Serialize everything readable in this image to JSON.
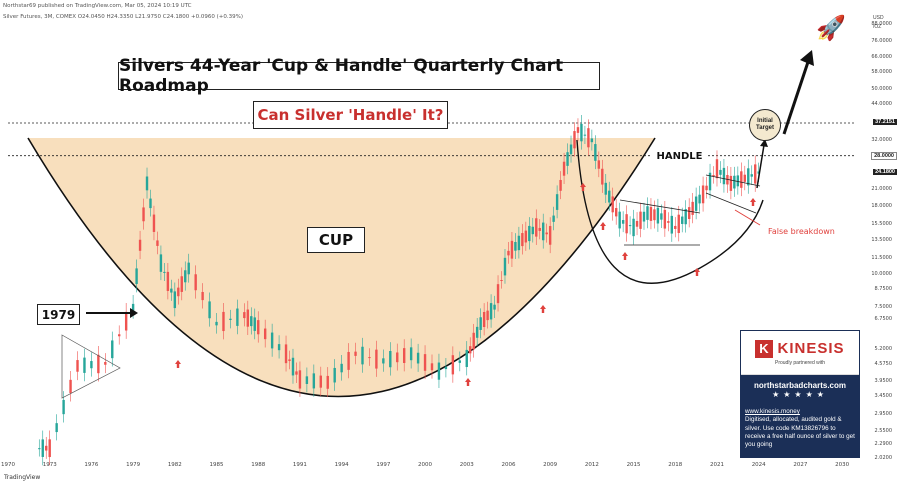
{
  "header": {
    "line1": "Northstar69 published on TradingView.com, Mar 05, 2024 10:19 UTC",
    "line2": "Silver Futures, 3M, COMEX  O24.0450  H24.3350  L21.9750  C24.1800  +0.0960 (+0.39%)"
  },
  "footer": {
    "brand": "TradingView"
  },
  "annotations": {
    "title": "Silvers 44-Year 'Cup & Handle' Quarterly Chart Roadmap",
    "subtitle": "Can Silver 'Handle' It?",
    "cup_label": "CUP",
    "handle_label": "HANDLE",
    "year_label": "1979",
    "false_breakdown": "False breakdown",
    "target_line1": "Initial",
    "target_line2": "Target"
  },
  "promo": {
    "brand": "KINESIS",
    "partner": "Proudly partnered with",
    "site": "northstarbadcharts.com",
    "stars": "★★★★★",
    "link": "www.kinesis.money",
    "text": "Digitised, allocated, audited gold & silver. Use code KM13826796 to receive a free half ounce of silver to get you going"
  },
  "axis": {
    "currency": "USD",
    "unit": "/OZ",
    "price_ticks": [
      "88.0000",
      "76.0000",
      "66.0000",
      "58.0000",
      "50.0000",
      "44.0000",
      "32.0000",
      "21.0000",
      "18.0000",
      "15.5000",
      "13.5000",
      "11.5000",
      "10.0000",
      "8.7500",
      "7.5000",
      "6.7500",
      "5.2000",
      "4.5750",
      "3.9500",
      "3.4500",
      "2.9500",
      "2.5500",
      "2.2900",
      "2.0200"
    ],
    "flags": {
      "resistance": "37.2151",
      "mid": "28.0000",
      "last": "24.1800"
    },
    "years": [
      "1970",
      "1973",
      "1976",
      "1979",
      "1982",
      "1985",
      "1988",
      "1991",
      "1994",
      "1997",
      "2000",
      "2003",
      "2006",
      "2009",
      "2012",
      "2015",
      "2018",
      "2021",
      "2024",
      "2027",
      "2030"
    ]
  },
  "colors": {
    "up": "#26a69a",
    "down": "#ef5350",
    "cup_fill": "#f8dfbd",
    "arrow_red": "#e0413d"
  },
  "chart_data": {
    "type": "candlestick",
    "title": "Silvers 44-Year 'Cup & Handle' Quarterly Chart Roadmap",
    "subtitle": "Can Silver 'Handle' It?",
    "series": [
      {
        "name": "Silver Futures",
        "x": [
          1973,
          1975,
          1977,
          1979,
          1980,
          1981,
          1982,
          1983,
          1985,
          1987,
          1988,
          1990,
          1991,
          1993,
          1995,
          1997,
          1999,
          2001,
          2003,
          2004,
          2005,
          2006,
          2007,
          2008,
          2009,
          2010,
          2011,
          2012,
          2013,
          2014,
          2015,
          2016,
          2017,
          2018,
          2019,
          2020,
          2021,
          2022,
          2023,
          2024
        ],
        "values": [
          2.2,
          4.5,
          4.6,
          7.5,
          22.0,
          11.0,
          8.0,
          10.5,
          6.5,
          7.0,
          6.3,
          5.0,
          4.0,
          3.9,
          5.0,
          4.7,
          5.0,
          4.3,
          4.8,
          6.5,
          7.5,
          12.0,
          13.5,
          15.0,
          14.0,
          25.0,
          35.0,
          32.0,
          21.0,
          16.0,
          15.0,
          17.0,
          16.5,
          15.0,
          17.0,
          20.0,
          25.0,
          22.0,
          23.0,
          24.18
        ]
      }
    ],
    "levels": [
      37.2151,
      28.0
    ],
    "ylim": [
      2.02,
      88.0
    ],
    "yscale": "log",
    "xlim": [
      1970,
      2031
    ]
  }
}
